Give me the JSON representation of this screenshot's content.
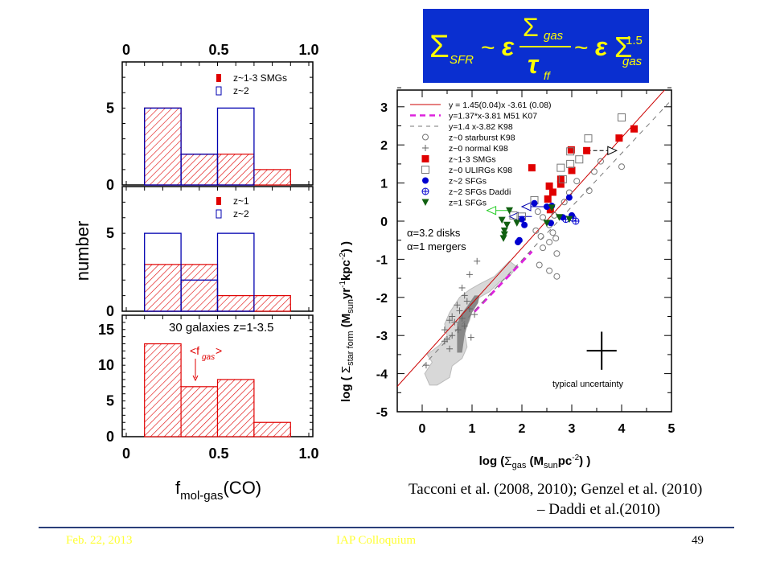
{
  "equation": {
    "text": "Σ_SFR ~ ε Σ_gas / τ_ff ~ ε Σ_gas^1.5",
    "sigma": "Σ",
    "sfr": "SFR",
    "sim": "~",
    "eps": "ε",
    "gas": "gas",
    "tau": "τ",
    "ff": "ff",
    "exp": "1.5",
    "bg_color": "#0a2fd0",
    "text_color": "#ffff00"
  },
  "histograms": {
    "ylabel": "number",
    "xlabel_main": "f",
    "xlabel_sub": "mol-gas",
    "xlabel_tail": "(CO)",
    "x_ticks": [
      "0",
      "0.5",
      "1.0"
    ],
    "colors": {
      "red": "#e00000",
      "blue": "#0000b0"
    }
  },
  "scatter": {
    "xlabel": "log (Σgas (Msun pc^-2) )",
    "ylabel": "log ( Σstar form (Msun yr^-1 kpc^-2) )",
    "x_ticks": [
      "0",
      "1",
      "2",
      "3",
      "4",
      "5"
    ],
    "y_ticks": [
      "3",
      "2",
      "1",
      "0",
      "-1",
      "-2",
      "-3",
      "-4",
      "-5"
    ],
    "annot_alpha1": "α=3.2 disks",
    "annot_alpha2": "α=1 mergers",
    "uncertainty_label": "typical uncertainty",
    "legend": [
      {
        "label": "y = 1.45(0.04)x -3.61 (0.08)",
        "symbol": "red-line"
      },
      {
        "label": "y=1.37*x-3.81 M51 K07",
        "symbol": "magenta-dash"
      },
      {
        "label": "y=1.4 x-3.82 K98",
        "symbol": "gray-dash"
      },
      {
        "label": "z~0 starburst K98",
        "symbol": "open-circle"
      },
      {
        "label": "z~0 normal K98",
        "symbol": "plus"
      },
      {
        "label": "z~1-3 SMGs",
        "symbol": "red-square"
      },
      {
        "label": "z~0 ULIRGs K98",
        "symbol": "open-square"
      },
      {
        "label": "z~2 SFGs",
        "symbol": "blue-circle"
      },
      {
        "label": "z~2 SFGs Daddi",
        "symbol": "blue-crossed-circle"
      },
      {
        "label": "z=1 SFGs",
        "symbol": "green-triangle"
      }
    ]
  },
  "citation": {
    "line1": "Tacconi et al. (2008, 2010); Genzel et al. (2010)",
    "line2": "–  Daddi et al.(2010)"
  },
  "footer": {
    "date": "Feb. 22, 2013",
    "event": "IAP Colloquium",
    "page": "49"
  },
  "chart_data": [
    {
      "type": "bar",
      "panel": "top",
      "title": "",
      "xlabel": "f_mol-gas(CO)",
      "ylabel": "number",
      "xlim": [
        0,
        1.0
      ],
      "ylim": [
        0,
        8
      ],
      "y_ticks": [
        "0",
        "5"
      ],
      "bin_edges": [
        0.1,
        0.3,
        0.5,
        0.7,
        0.9
      ],
      "series": [
        {
          "name": "z~1-3 SMGs",
          "style": "red-hatched",
          "values": [
            5,
            2,
            2,
            1
          ]
        },
        {
          "name": "z~2",
          "style": "blue-open",
          "values": [
            5,
            2,
            5,
            0
          ]
        }
      ],
      "legend_position": "top-right"
    },
    {
      "type": "bar",
      "panel": "middle",
      "xlim": [
        0,
        1.0
      ],
      "ylim": [
        0,
        8
      ],
      "y_ticks": [
        "0",
        "5"
      ],
      "bin_edges": [
        0.1,
        0.3,
        0.5,
        0.7,
        0.9
      ],
      "series": [
        {
          "name": "z~1",
          "style": "red-hatched",
          "values": [
            3,
            3,
            1,
            1
          ]
        },
        {
          "name": "z~2",
          "style": "blue-open",
          "values": [
            5,
            2,
            5,
            0
          ]
        }
      ],
      "legend_position": "top-right"
    },
    {
      "type": "bar",
      "panel": "bottom",
      "title": "30 galaxies z=1-3.5",
      "xlim": [
        0,
        1.0
      ],
      "ylim": [
        0,
        17
      ],
      "y_ticks": [
        "0",
        "5",
        "10",
        "15"
      ],
      "bin_edges": [
        0.1,
        0.3,
        0.5,
        0.7,
        0.9
      ],
      "series": [
        {
          "name": "all",
          "style": "red-hatched",
          "values": [
            13,
            7,
            8,
            2
          ]
        }
      ],
      "annotation": {
        "text": "<f_gas>",
        "x": 0.37,
        "arrow_to_y": 8
      }
    },
    {
      "type": "scatter",
      "title": "",
      "xlabel": "log (Σgas (Msun pc^-2))",
      "ylabel": "log (Σstar form (Msun yr^-1 kpc^-2))",
      "xlim": [
        -0.5,
        5
      ],
      "ylim": [
        -5,
        3.5
      ],
      "lines": [
        {
          "name": "y = 1.45(0.04)x -3.61 (0.08)",
          "slope": 1.45,
          "intercept": -3.61,
          "color": "#cc0000",
          "style": "solid",
          "x_range": [
            -0.5,
            4.95
          ]
        },
        {
          "name": "y=1.37*x-3.81 M51 K07",
          "slope": 1.37,
          "intercept": -3.81,
          "color": "#dd22dd",
          "style": "dash",
          "x_range": [
            1.05,
            2.2
          ]
        },
        {
          "name": "y=1.4 x-3.82 K98",
          "slope": 1.4,
          "intercept": -3.82,
          "color": "#777777",
          "style": "dash",
          "x_range": [
            0.0,
            4.95
          ]
        }
      ],
      "series": [
        {
          "name": "z~1-3 SMGs",
          "marker": "red-square",
          "points": [
            [
              4.25,
              2.42
            ],
            [
              3.95,
              2.18
            ],
            [
              2.99,
              1.87
            ],
            [
              3.0,
              1.33
            ],
            [
              2.78,
              1.1
            ],
            [
              2.55,
              0.92
            ],
            [
              2.62,
              0.76
            ],
            [
              2.78,
              0.97
            ],
            [
              2.52,
              0.58
            ],
            [
              2.57,
              0.3
            ],
            [
              3.3,
              1.85
            ],
            [
              2.2,
              1.4
            ]
          ]
        },
        {
          "name": "z~0 ULIRGs K98",
          "marker": "open-square",
          "points": [
            [
              4.0,
              2.72
            ],
            [
              3.33,
              2.17
            ],
            [
              2.97,
              1.83
            ],
            [
              3.15,
              1.62
            ],
            [
              2.97,
              1.5
            ],
            [
              2.78,
              1.4
            ],
            [
              2.82,
              1.1
            ],
            [
              2.25,
              0.55
            ],
            [
              1.83,
              0.15
            ],
            [
              2.0,
              0.12
            ]
          ]
        },
        {
          "name": "z~0 starburst K98",
          "marker": "open-circle",
          "points": [
            [
              4.0,
              1.43
            ],
            [
              3.58,
              1.57
            ],
            [
              3.45,
              1.3
            ],
            [
              3.1,
              1.05
            ],
            [
              3.35,
              0.8
            ],
            [
              2.95,
              0.75
            ],
            [
              2.85,
              0.5
            ],
            [
              2.32,
              0.25
            ],
            [
              2.42,
              0.1
            ],
            [
              2.55,
              -0.1
            ],
            [
              2.65,
              0.15
            ],
            [
              2.28,
              -0.25
            ],
            [
              2.38,
              -0.4
            ],
            [
              2.55,
              -0.55
            ],
            [
              2.62,
              -0.3
            ],
            [
              2.42,
              -0.7
            ],
            [
              2.68,
              -0.45
            ],
            [
              2.7,
              -0.85
            ],
            [
              2.35,
              -1.15
            ],
            [
              2.55,
              -1.3
            ],
            [
              2.7,
              -1.45
            ]
          ]
        },
        {
          "name": "z~0 normal K98",
          "marker": "plus",
          "points": [
            [
              1.1,
              -1.05
            ],
            [
              0.95,
              -1.4
            ],
            [
              0.8,
              -1.75
            ],
            [
              0.85,
              -1.95
            ],
            [
              0.9,
              -2.1
            ],
            [
              0.7,
              -2.2
            ],
            [
              0.75,
              -2.35
            ],
            [
              0.95,
              -2.3
            ],
            [
              0.6,
              -2.5
            ],
            [
              0.55,
              -2.6
            ],
            [
              0.45,
              -2.85
            ],
            [
              0.65,
              -2.65
            ],
            [
              0.8,
              -2.55
            ],
            [
              1.05,
              -2.45
            ],
            [
              0.72,
              -2.85
            ],
            [
              0.85,
              -2.75
            ],
            [
              0.6,
              -3.0
            ],
            [
              0.45,
              -3.15
            ],
            [
              0.98,
              -3.05
            ],
            [
              0.55,
              -3.35
            ],
            [
              0.08,
              -3.78
            ],
            [
              0.5,
              -3.1
            ]
          ]
        },
        {
          "name": "z~2 SFGs",
          "marker": "blue-circle",
          "points": [
            [
              2.5,
              0.38
            ],
            [
              2.25,
              0.47
            ],
            [
              2.95,
              0.62
            ],
            [
              3.0,
              0.15
            ],
            [
              2.58,
              -0.05
            ],
            [
              2.82,
              0.1
            ],
            [
              2.6,
              0.4
            ],
            [
              2.05,
              -0.1
            ],
            [
              2.0,
              0.05
            ],
            [
              1.92,
              -0.55
            ],
            [
              1.95,
              -0.5
            ]
          ]
        },
        {
          "name": "z~2 SFGs Daddi",
          "marker": "blue-crossed-circle",
          "points": [
            [
              2.88,
              0.05
            ],
            [
              3.02,
              0.08
            ],
            [
              3.08,
              0.0
            ]
          ]
        },
        {
          "name": "z=1 SFGs",
          "marker": "green-triangle",
          "points": [
            [
              2.6,
              0.35
            ],
            [
              1.75,
              0.28
            ],
            [
              1.6,
              0.03
            ],
            [
              1.7,
              -0.1
            ],
            [
              1.65,
              -0.35
            ],
            [
              1.63,
              -0.45
            ],
            [
              1.9,
              -0.05
            ],
            [
              2.5,
              -0.05
            ],
            [
              2.95,
              0.05
            ],
            [
              2.75,
              0.1
            ],
            [
              1.65,
              -0.25
            ]
          ]
        }
      ],
      "arrows": [
        {
          "from": [
            3.3,
            1.85
          ],
          "to": [
            3.9,
            1.85
          ],
          "color": "#000000"
        },
        {
          "from": [
            2.5,
            0.38
          ],
          "to": [
            2.0,
            0.38
          ],
          "color": "#0000b0"
        },
        {
          "from": [
            2.2,
            0.12
          ],
          "to": [
            1.75,
            0.12
          ],
          "color": "#0000b0"
        },
        {
          "from": [
            1.8,
            0.28
          ],
          "to": [
            1.3,
            0.28
          ],
          "color": "#22cc22"
        }
      ],
      "regions": [
        {
          "name": "light-gray-region",
          "color": "#d8d8d8"
        },
        {
          "name": "dark-gray-region",
          "color": "#888888"
        }
      ],
      "uncertainty_cross": {
        "x": 3.6,
        "y": -3.4,
        "dx": 0.3,
        "dy": 0.5
      }
    }
  ]
}
